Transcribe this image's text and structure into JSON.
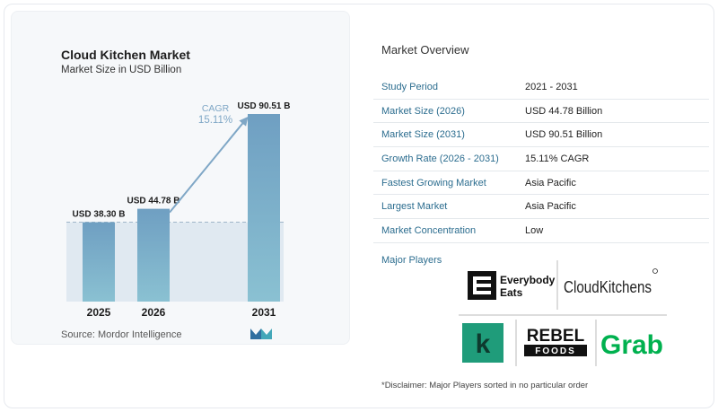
{
  "chart_data": {
    "type": "bar",
    "title": "Cloud Kitchen Market",
    "subtitle": "Market Size in USD Billion",
    "categories": [
      "2025",
      "2026",
      "2031"
    ],
    "values": [
      38.3,
      44.78,
      90.51
    ],
    "value_labels": [
      "USD 38.30 B",
      "USD 44.78 B",
      "USD 90.51 B"
    ],
    "cagr_label": "CAGR",
    "cagr_value": "15.11%",
    "ylim": [
      0,
      90.51
    ],
    "source": "Source:  Mordor Intelligence",
    "colors": {
      "bar_top": "#6f9fc2",
      "bar_bottom": "#8ac1d2",
      "arrow": "#7fa7c6",
      "shade": "#e0e9f1",
      "dashed_line": "#9fb6c8"
    }
  },
  "overview": {
    "title": "Market Overview",
    "rows": [
      {
        "label": "Study Period",
        "value": "2021 - 2031"
      },
      {
        "label": "Market Size (2026)",
        "value": "USD 44.78 Billion"
      },
      {
        "label": "Market Size (2031)",
        "value": "USD 90.51 Billion"
      },
      {
        "label": "Growth Rate (2026 - 2031)",
        "value": "15.11% CAGR"
      },
      {
        "label": "Fastest Growing Market",
        "value": "Asia Pacific"
      },
      {
        "label": "Largest Market",
        "value": "Asia Pacific"
      },
      {
        "label": "Market Concentration",
        "value": "Low"
      }
    ],
    "players_label": "Major Players",
    "players": {
      "everybody_eats": [
        "Everybody",
        "Eats"
      ],
      "cloudkitchens": "CloudKitchens",
      "rebel": [
        "REBEL",
        "FOODS"
      ],
      "grab": "Grab",
      "k_icon": "k"
    },
    "disclaimer": "*Disclaimer: Major Players sorted in no particular order"
  }
}
